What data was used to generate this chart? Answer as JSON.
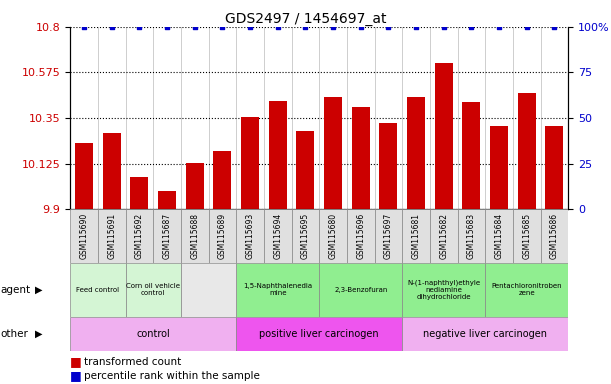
{
  "title": "GDS2497 / 1454697_at",
  "samples": [
    "GSM115690",
    "GSM115691",
    "GSM115692",
    "GSM115687",
    "GSM115688",
    "GSM115689",
    "GSM115693",
    "GSM115694",
    "GSM115695",
    "GSM115680",
    "GSM115696",
    "GSM115697",
    "GSM115681",
    "GSM115682",
    "GSM115683",
    "GSM115684",
    "GSM115685",
    "GSM115686"
  ],
  "bar_values": [
    10.225,
    10.275,
    10.06,
    9.99,
    10.13,
    10.19,
    10.355,
    10.435,
    10.285,
    10.455,
    10.405,
    10.325,
    10.455,
    10.62,
    10.43,
    10.31,
    10.475,
    10.31
  ],
  "percentile_values": [
    100,
    100,
    100,
    100,
    100,
    100,
    100,
    100,
    100,
    100,
    100,
    100,
    100,
    100,
    100,
    100,
    100,
    100
  ],
  "ylim_left": [
    9.9,
    10.8
  ],
  "ylim_right": [
    0,
    100
  ],
  "yticks_left": [
    9.9,
    10.125,
    10.35,
    10.575,
    10.8
  ],
  "yticks_right": [
    0,
    25,
    50,
    75,
    100
  ],
  "bar_color": "#cc0000",
  "percentile_color": "#0000cc",
  "agent_groups": [
    {
      "label": "Feed control",
      "start": 0,
      "end": 1,
      "color": "#d4f5d4"
    },
    {
      "label": "Corn oil vehicle\ncontrol",
      "start": 2,
      "end": 3,
      "color": "#d4f5d4"
    },
    {
      "label": "1,5-Naphthalenedia\nmine",
      "start": 6,
      "end": 8,
      "color": "#90ee90"
    },
    {
      "label": "2,3-Benzofuran",
      "start": 9,
      "end": 11,
      "color": "#90ee90"
    },
    {
      "label": "N-(1-naphthyl)ethyle\nnediamine\ndihydrochloride",
      "start": 12,
      "end": 14,
      "color": "#90ee90"
    },
    {
      "label": "Pentachloronitroben\nzene",
      "start": 15,
      "end": 17,
      "color": "#90ee90"
    }
  ],
  "other_groups": [
    {
      "label": "control",
      "start": 0,
      "end": 5,
      "color": "#f0b0f0"
    },
    {
      "label": "positive liver carcinogen",
      "start": 6,
      "end": 11,
      "color": "#ee55ee"
    },
    {
      "label": "negative liver carcinogen",
      "start": 12,
      "end": 17,
      "color": "#f0b0f0"
    }
  ],
  "tick_label_color_left": "#cc0000",
  "tick_label_color_right": "#0000cc",
  "legend_items": [
    {
      "label": "transformed count",
      "color": "#cc0000"
    },
    {
      "label": "percentile rank within the sample",
      "color": "#0000cc"
    }
  ]
}
